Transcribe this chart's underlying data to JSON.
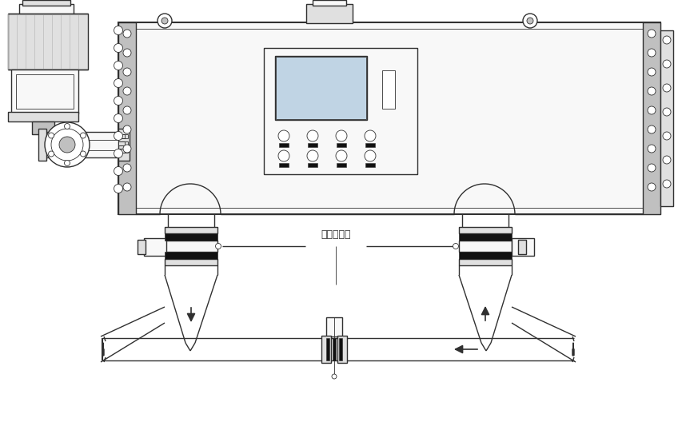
{
  "lc": "#303030",
  "lc2": "#555555",
  "fl": "#f8f8f8",
  "fm": "#e0e0e0",
  "fd": "#c0c0c0",
  "fk": "#111111",
  "fp": "#dce8f0",
  "label_valve": "切断用阁门",
  "lw": 1.0,
  "lw2": 1.5,
  "lw1": 0.6,
  "lwb": 2.5
}
